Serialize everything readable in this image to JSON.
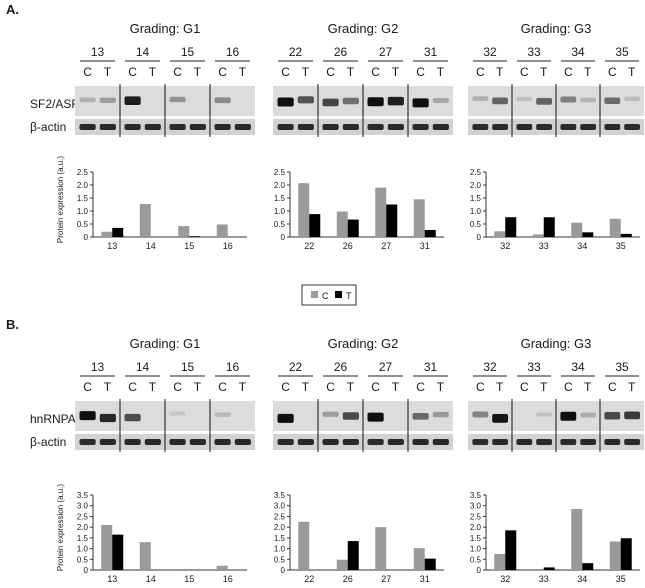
{
  "panels": [
    {
      "letter": "A.",
      "gradings": [
        {
          "title": "Grading: G1",
          "patients": [
            "13",
            "14",
            "15",
            "16"
          ]
        },
        {
          "title": "Grading: G2",
          "patients": [
            "22",
            "26",
            "27",
            "31"
          ]
        },
        {
          "title": "Grading: G3",
          "patients": [
            "32",
            "33",
            "34",
            "35"
          ]
        }
      ],
      "lane_labels": [
        "C",
        "T"
      ],
      "blot_rows": [
        "SF2/ASF",
        "β-actin"
      ]
    },
    {
      "letter": "B.",
      "gradings": [
        {
          "title": "Grading: G1",
          "patients": [
            "13",
            "14",
            "15",
            "16"
          ]
        },
        {
          "title": "Grading: G2",
          "patients": [
            "22",
            "26",
            "27",
            "31"
          ]
        },
        {
          "title": "Grading: G3",
          "patients": [
            "32",
            "33",
            "34",
            "35"
          ]
        }
      ],
      "lane_labels": [
        "C",
        "T"
      ],
      "blot_rows": [
        "hnRNPA1",
        "β-actin"
      ]
    }
  ],
  "legend": {
    "items": [
      {
        "label": "C",
        "color": "#9a9a9a"
      },
      {
        "label": "T",
        "color": "#000000"
      }
    ]
  },
  "colors": {
    "C": "#9a9a9a",
    "T": "#000000"
  },
  "chart_data": [
    {
      "type": "bar",
      "panel": "A",
      "grading": "G1",
      "ylabel": "Protein expression (a.u.)",
      "categories": [
        "13",
        "14",
        "15",
        "16"
      ],
      "ylim": [
        0,
        2.5
      ],
      "yticks": [
        "0",
        "0.5",
        "1.0",
        "1.5",
        "2.0",
        "2.5"
      ],
      "series": [
        {
          "name": "C",
          "values": [
            0.2,
            1.27,
            0.42,
            0.48
          ]
        },
        {
          "name": "T",
          "values": [
            0.35,
            0.0,
            0.03,
            0.0
          ]
        }
      ]
    },
    {
      "type": "bar",
      "panel": "A",
      "grading": "G2",
      "categories": [
        "22",
        "26",
        "27",
        "31"
      ],
      "ylim": [
        0,
        2.5
      ],
      "yticks": [
        "0",
        "0.5",
        "1.0",
        "1.5",
        "2.0",
        "2.5"
      ],
      "series": [
        {
          "name": "C",
          "values": [
            2.07,
            0.98,
            1.9,
            1.45
          ]
        },
        {
          "name": "T",
          "values": [
            0.88,
            0.67,
            1.25,
            0.27
          ]
        }
      ]
    },
    {
      "type": "bar",
      "panel": "A",
      "grading": "G3",
      "categories": [
        "32",
        "33",
        "34",
        "35"
      ],
      "ylim": [
        0,
        2.5
      ],
      "yticks": [
        "0",
        "0.5",
        "1.0",
        "1.5",
        "2.0",
        "2.5"
      ],
      "series": [
        {
          "name": "C",
          "values": [
            0.22,
            0.1,
            0.55,
            0.7
          ]
        },
        {
          "name": "T",
          "values": [
            0.76,
            0.76,
            0.18,
            0.12
          ]
        }
      ]
    },
    {
      "type": "bar",
      "panel": "B",
      "grading": "G1",
      "ylabel": "Protein expression (a.u.)",
      "categories": [
        "13",
        "14",
        "15",
        "16"
      ],
      "ylim": [
        0,
        3.5
      ],
      "yticks": [
        "0",
        "0.5",
        "1.0",
        "1.5",
        "2.0",
        "2.5",
        "3.0",
        "3.5"
      ],
      "series": [
        {
          "name": "C",
          "values": [
            2.1,
            1.3,
            0.05,
            0.2
          ]
        },
        {
          "name": "T",
          "values": [
            1.65,
            0.0,
            0.0,
            0.0
          ]
        }
      ]
    },
    {
      "type": "bar",
      "panel": "B",
      "grading": "G2",
      "categories": [
        "22",
        "26",
        "27",
        "31"
      ],
      "ylim": [
        0,
        3.5
      ],
      "yticks": [
        "0",
        "0.5",
        "1.0",
        "1.5",
        "2.0",
        "2.5",
        "3.0",
        "3.5"
      ],
      "series": [
        {
          "name": "C",
          "values": [
            2.25,
            0.48,
            2.0,
            1.02
          ]
        },
        {
          "name": "T",
          "values": [
            0.0,
            1.35,
            0.0,
            0.53
          ]
        }
      ]
    },
    {
      "type": "bar",
      "panel": "B",
      "grading": "G3",
      "categories": [
        "32",
        "33",
        "34",
        "35"
      ],
      "ylim": [
        0,
        3.5
      ],
      "yticks": [
        "0",
        "0.5",
        "1.0",
        "1.5",
        "2.0",
        "2.5",
        "3.0",
        "3.5"
      ],
      "series": [
        {
          "name": "C",
          "values": [
            0.75,
            0.0,
            2.85,
            1.33
          ]
        },
        {
          "name": "T",
          "values": [
            1.85,
            0.12,
            0.32,
            1.48
          ]
        }
      ]
    }
  ]
}
